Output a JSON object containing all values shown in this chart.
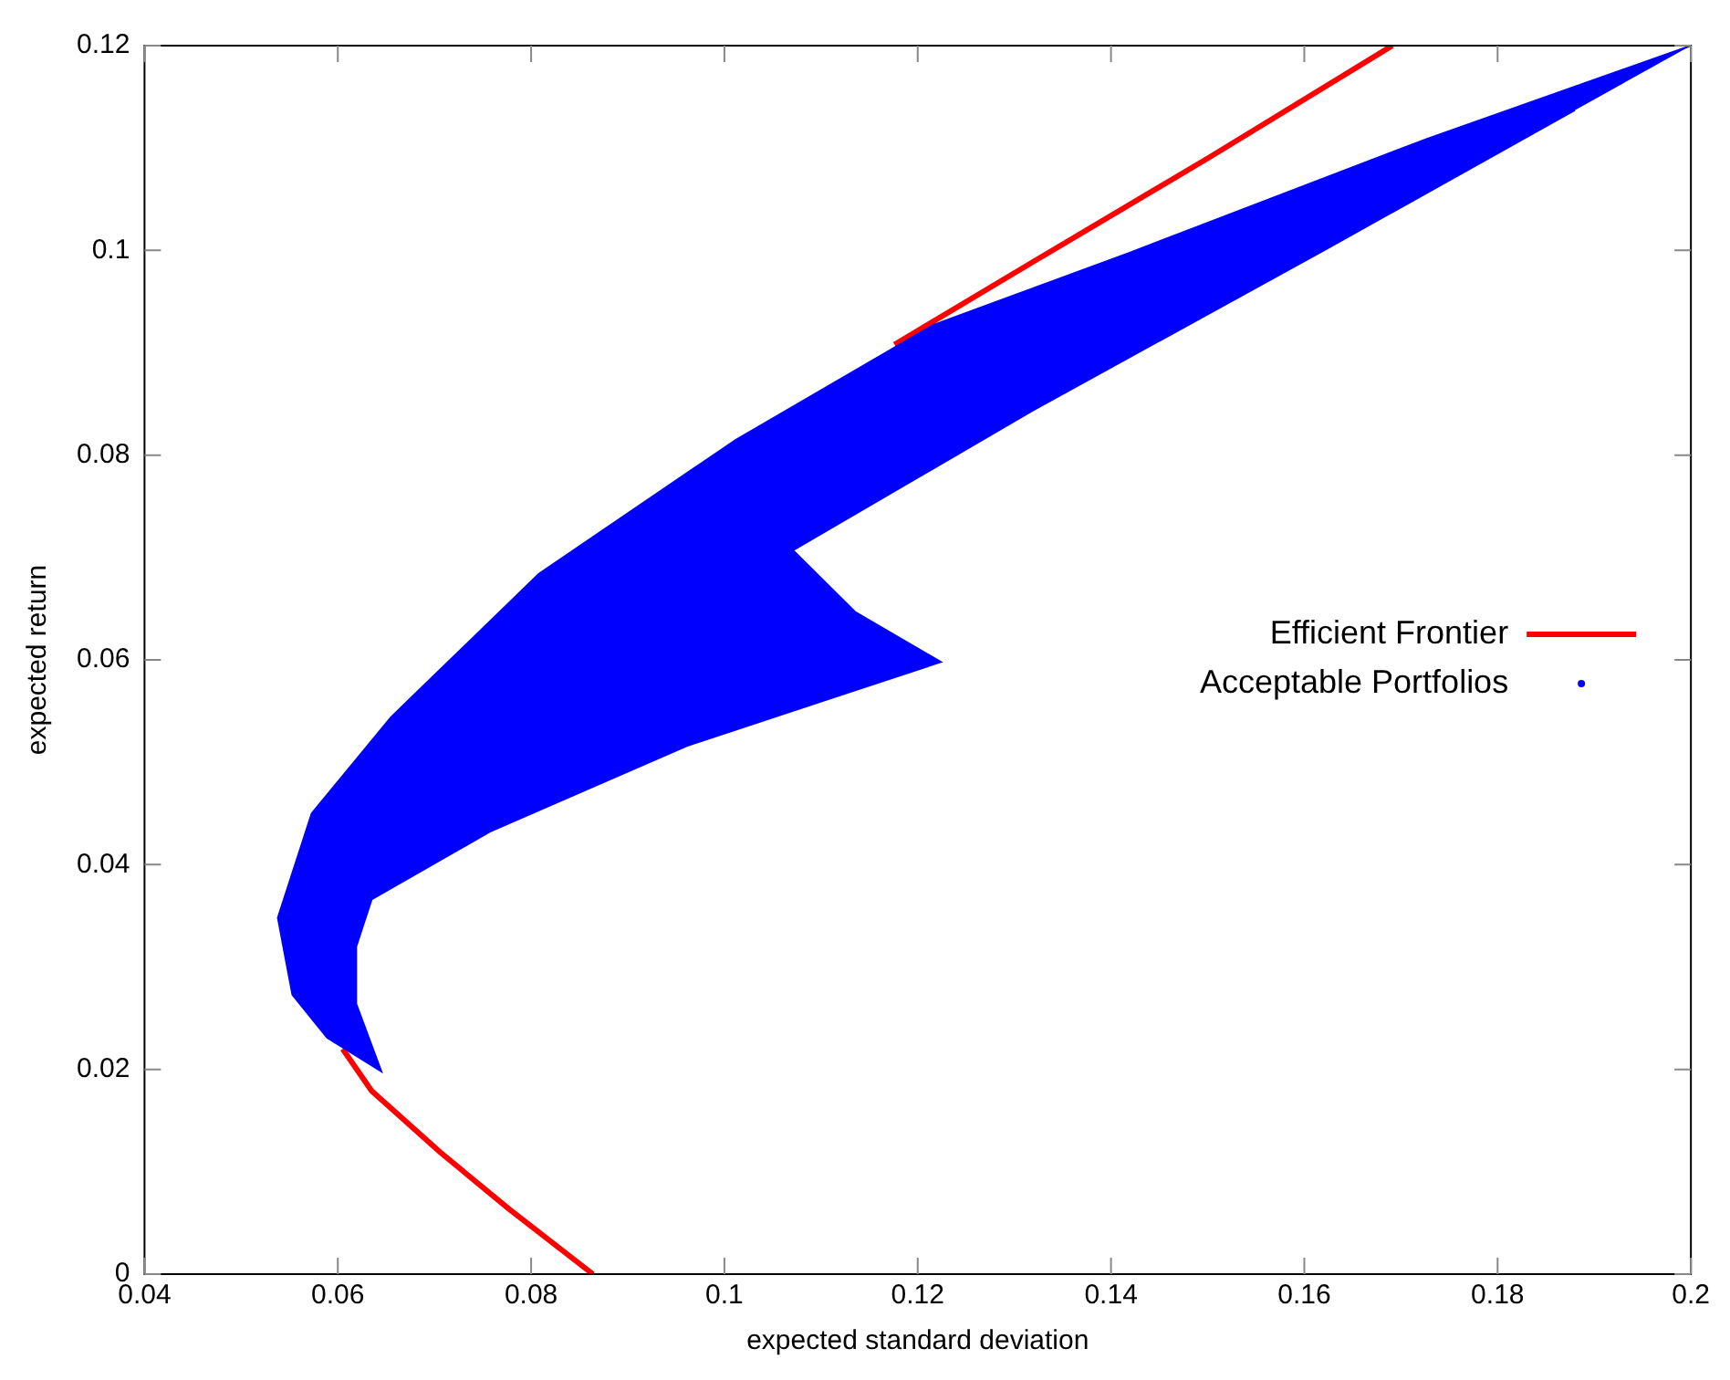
{
  "chart_data": {
    "type": "area",
    "xlabel": "expected standard deviation",
    "ylabel": "expected return",
    "xlim": [
      0.04,
      0.2
    ],
    "xticks": [
      0.04,
      0.06,
      0.08,
      0.1,
      0.12,
      0.14,
      0.16,
      0.18,
      0.2
    ],
    "ylim": [
      0,
      0.12
    ],
    "yticks": [
      0,
      0.02,
      0.04,
      0.06,
      0.08,
      0.1,
      0.12
    ],
    "grid": false,
    "legend": "right",
    "series": [
      {
        "name": "Efficient Frontier",
        "type": "line",
        "color": "#ff0000",
        "marker": "none",
        "line_style": "solid",
        "x": [
          0.0864,
          0.0778,
          0.0706,
          0.0635,
          0.0605,
          0.09,
          0.1176,
          0.1318,
          0.1502,
          0.1691
        ],
        "values": [
          0,
          0.0063,
          0.0119,
          0.0179,
          0.022,
          null,
          0.0908,
          0.0988,
          0.1091,
          0.12
        ]
      },
      {
        "name": "Acceptable Portfolios",
        "color": "#0000ff",
        "x": [
          0.2,
          0.1727,
          0.142,
          0.1216,
          0.1012,
          0.0808,
          0.0655,
          0.0573,
          0.0538,
          0.0553,
          0.0589,
          0.0645,
          0.0619,
          0.0619,
          0.0635,
          0.0757,
          0.0961,
          0.1224,
          0.1135,
          0.1071,
          0.1318,
          0.1624,
          0.188
        ],
        "values": [
          0.12,
          0.1109,
          0.0998,
          0.0927,
          0.0815,
          0.0684,
          0.0544,
          0.045,
          0.0348,
          0.0273,
          0.0231,
          0.0198,
          0.0264,
          0.032,
          0.0366,
          0.0432,
          0.0516,
          0.0598,
          0.0647,
          0.0707,
          0.0843,
          0.1002,
          0.1137
        ]
      }
    ]
  }
}
